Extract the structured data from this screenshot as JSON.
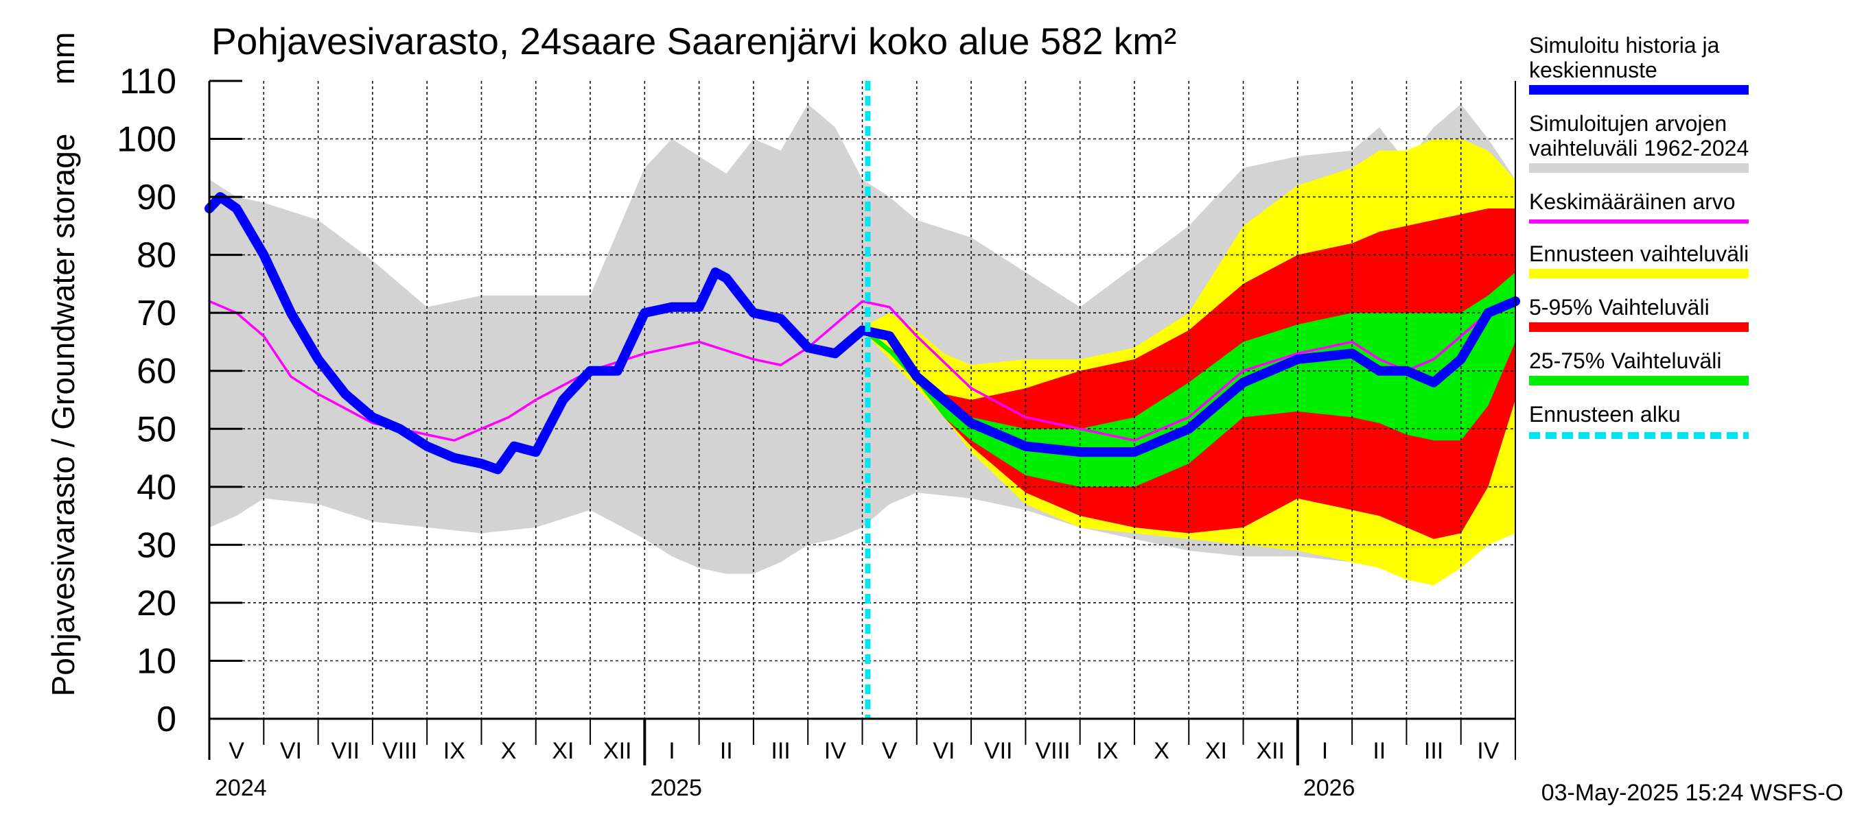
{
  "title": "Pohjavesivarasto, 24saare Saarenjärvi koko alue 582 km²",
  "ylabel": "Pohjavesivarasto / Groundwater storage",
  "yunit": "mm",
  "footer": "03-May-2025 15:24 WSFS-O",
  "legend": [
    {
      "label": "Simuloitu historia ja\nkeskiennuste",
      "color": "#0000ff",
      "style": "thick"
    },
    {
      "label": "Simuloitujen arvojen\nvaihteluväli 1962-2024",
      "color": "#d3d3d3",
      "style": "thick"
    },
    {
      "label": "Keskimääräinen arvo",
      "color": "#ff00ff",
      "style": "thin"
    },
    {
      "label": "Ennusteen vaihteluväli",
      "color": "#ffff00",
      "style": "thick"
    },
    {
      "label": "5-95% Vaihteluväli",
      "color": "#ff0000",
      "style": "thick"
    },
    {
      "label": "25-75% Vaihteluväli",
      "color": "#00ee00",
      "style": "thick"
    },
    {
      "label": "Ennusteen alku",
      "color": "#00e5ee",
      "style": "dash"
    }
  ],
  "chart_data": {
    "type": "area",
    "title": "Pohjavesivarasto, 24saare Saarenjärvi koko alue 582 km²",
    "ylabel": "Pohjavesivarasto / Groundwater storage",
    "yunit": "mm",
    "ylim": [
      0,
      110
    ],
    "yticks": [
      0,
      10,
      20,
      30,
      40,
      50,
      60,
      70,
      80,
      90,
      100,
      110
    ],
    "grid": true,
    "legend_position": "right",
    "months": [
      "V",
      "VI",
      "VII",
      "VIII",
      "IX",
      "X",
      "XI",
      "XII",
      "I",
      "II",
      "III",
      "IV",
      "V",
      "VI",
      "VII",
      "VIII",
      "IX",
      "X",
      "XI",
      "XII",
      "I",
      "II",
      "III",
      "IV"
    ],
    "years": [
      {
        "label": "2024",
        "month_index": 0
      },
      {
        "label": "2025",
        "month_index": 8
      },
      {
        "label": "2026",
        "month_index": 20
      }
    ],
    "x_range_months": [
      0,
      24
    ],
    "forecast_start_month": 12.1,
    "series": [
      {
        "name": "Simuloitujen arvojen vaihteluväli 1962-2024",
        "kind": "band",
        "color": "#d3d3d3",
        "x": [
          0,
          0.5,
          1,
          2,
          3,
          4,
          5,
          6,
          7,
          8,
          8.5,
          9,
          9.5,
          10,
          10.5,
          11,
          11.5,
          12,
          12.5,
          13,
          14,
          15,
          16,
          17,
          18,
          19,
          20,
          21,
          21.5,
          22,
          22.5,
          23,
          23.5,
          24
        ],
        "upper": [
          93,
          90,
          89,
          86,
          79,
          71,
          73,
          73,
          73,
          95,
          100,
          97,
          94,
          100,
          98,
          106,
          102,
          93,
          90,
          86,
          83,
          77,
          71,
          78,
          85,
          95,
          97,
          98,
          102,
          96,
          102,
          106,
          100,
          93
        ],
        "lower": [
          33,
          35,
          38,
          37,
          34,
          33,
          32,
          33,
          36,
          31,
          28,
          26,
          25,
          25,
          27,
          30,
          31,
          33,
          37,
          39,
          38,
          36,
          33,
          31,
          29,
          28,
          28,
          27,
          30,
          28,
          27,
          29,
          31,
          32
        ]
      },
      {
        "name": "Ennusteen vaihteluväli",
        "kind": "band",
        "color": "#ffff00",
        "x": [
          12.1,
          12.5,
          13,
          13.5,
          14,
          15,
          16,
          17,
          18,
          19,
          20,
          21,
          21.5,
          22,
          22.5,
          23,
          23.5,
          24
        ],
        "upper": [
          68,
          70,
          67,
          63,
          61,
          62,
          62,
          64,
          70,
          85,
          92,
          95,
          98,
          98,
          100,
          100,
          98,
          93
        ],
        "lower": [
          66,
          62,
          57,
          52,
          46,
          37,
          33,
          32,
          31,
          30,
          29,
          27,
          26,
          24,
          23,
          26,
          30,
          32
        ]
      },
      {
        "name": "5-95% Vaihteluväli",
        "kind": "band",
        "color": "#ff0000",
        "x": [
          12.1,
          12.5,
          13,
          13.5,
          14,
          15,
          16,
          17,
          18,
          19,
          20,
          21,
          21.5,
          22,
          22.5,
          23,
          23.5,
          24
        ],
        "upper": [
          67,
          64,
          60,
          56,
          55,
          57,
          60,
          62,
          67,
          75,
          80,
          82,
          84,
          85,
          86,
          87,
          88,
          88
        ],
        "lower": [
          66,
          63,
          58,
          52,
          47,
          39,
          35,
          33,
          32,
          33,
          38,
          36,
          35,
          33,
          31,
          32,
          40,
          55
        ]
      },
      {
        "name": "25-75% Vaihteluväli",
        "kind": "band",
        "color": "#00ee00",
        "x": [
          12.1,
          12.5,
          13,
          13.5,
          14,
          15,
          16,
          17,
          18,
          19,
          20,
          21,
          21.5,
          22,
          22.5,
          23,
          23.5,
          24
        ],
        "upper": [
          67,
          64,
          59,
          54,
          52,
          50,
          50,
          52,
          58,
          65,
          68,
          70,
          70,
          70,
          70,
          70,
          73,
          77
        ],
        "lower": [
          66,
          63,
          58,
          52,
          48,
          42,
          40,
          40,
          44,
          52,
          53,
          52,
          51,
          49,
          48,
          48,
          54,
          65
        ]
      },
      {
        "name": "Keskimääräinen arvo",
        "kind": "line",
        "color": "#ff00ff",
        "x": [
          0,
          0.5,
          1,
          1.5,
          2,
          3,
          4,
          4.5,
          5,
          5.5,
          6,
          7,
          8,
          9,
          10,
          10.5,
          11,
          11.5,
          12,
          12.5,
          13,
          14,
          15,
          16,
          17,
          18,
          19,
          20,
          21,
          21.5,
          22,
          22.5,
          23,
          23.5,
          24
        ],
        "y": [
          72,
          70,
          66,
          59,
          56,
          51,
          49,
          48,
          50,
          52,
          55,
          60,
          63,
          65,
          62,
          61,
          64,
          68,
          72,
          71,
          66,
          57,
          52,
          50,
          48,
          52,
          60,
          63,
          65,
          62,
          60,
          62,
          66,
          70,
          72
        ]
      },
      {
        "name": "Simuloitu historia ja keskiennuste",
        "kind": "line",
        "color": "#0000ff",
        "x": [
          0,
          0.2,
          0.5,
          1,
          1.5,
          2,
          2.5,
          3,
          3.5,
          4,
          4.5,
          5,
          5.3,
          5.6,
          6,
          6.5,
          7,
          7.5,
          8,
          8.5,
          9,
          9.3,
          9.5,
          10,
          10.5,
          11,
          11.5,
          12,
          12.5,
          13,
          13.5,
          14,
          15,
          16,
          17,
          18,
          19,
          20,
          21,
          21.5,
          22,
          22.5,
          23,
          23.5,
          24
        ],
        "y": [
          88,
          90,
          88,
          80,
          70,
          62,
          56,
          52,
          50,
          47,
          45,
          44,
          43,
          47,
          46,
          55,
          60,
          60,
          70,
          71,
          71,
          77,
          76,
          70,
          69,
          64,
          63,
          67,
          66,
          59,
          55,
          51,
          47,
          46,
          46,
          50,
          58,
          62,
          63,
          60,
          60,
          58,
          62,
          70,
          72
        ]
      }
    ]
  }
}
